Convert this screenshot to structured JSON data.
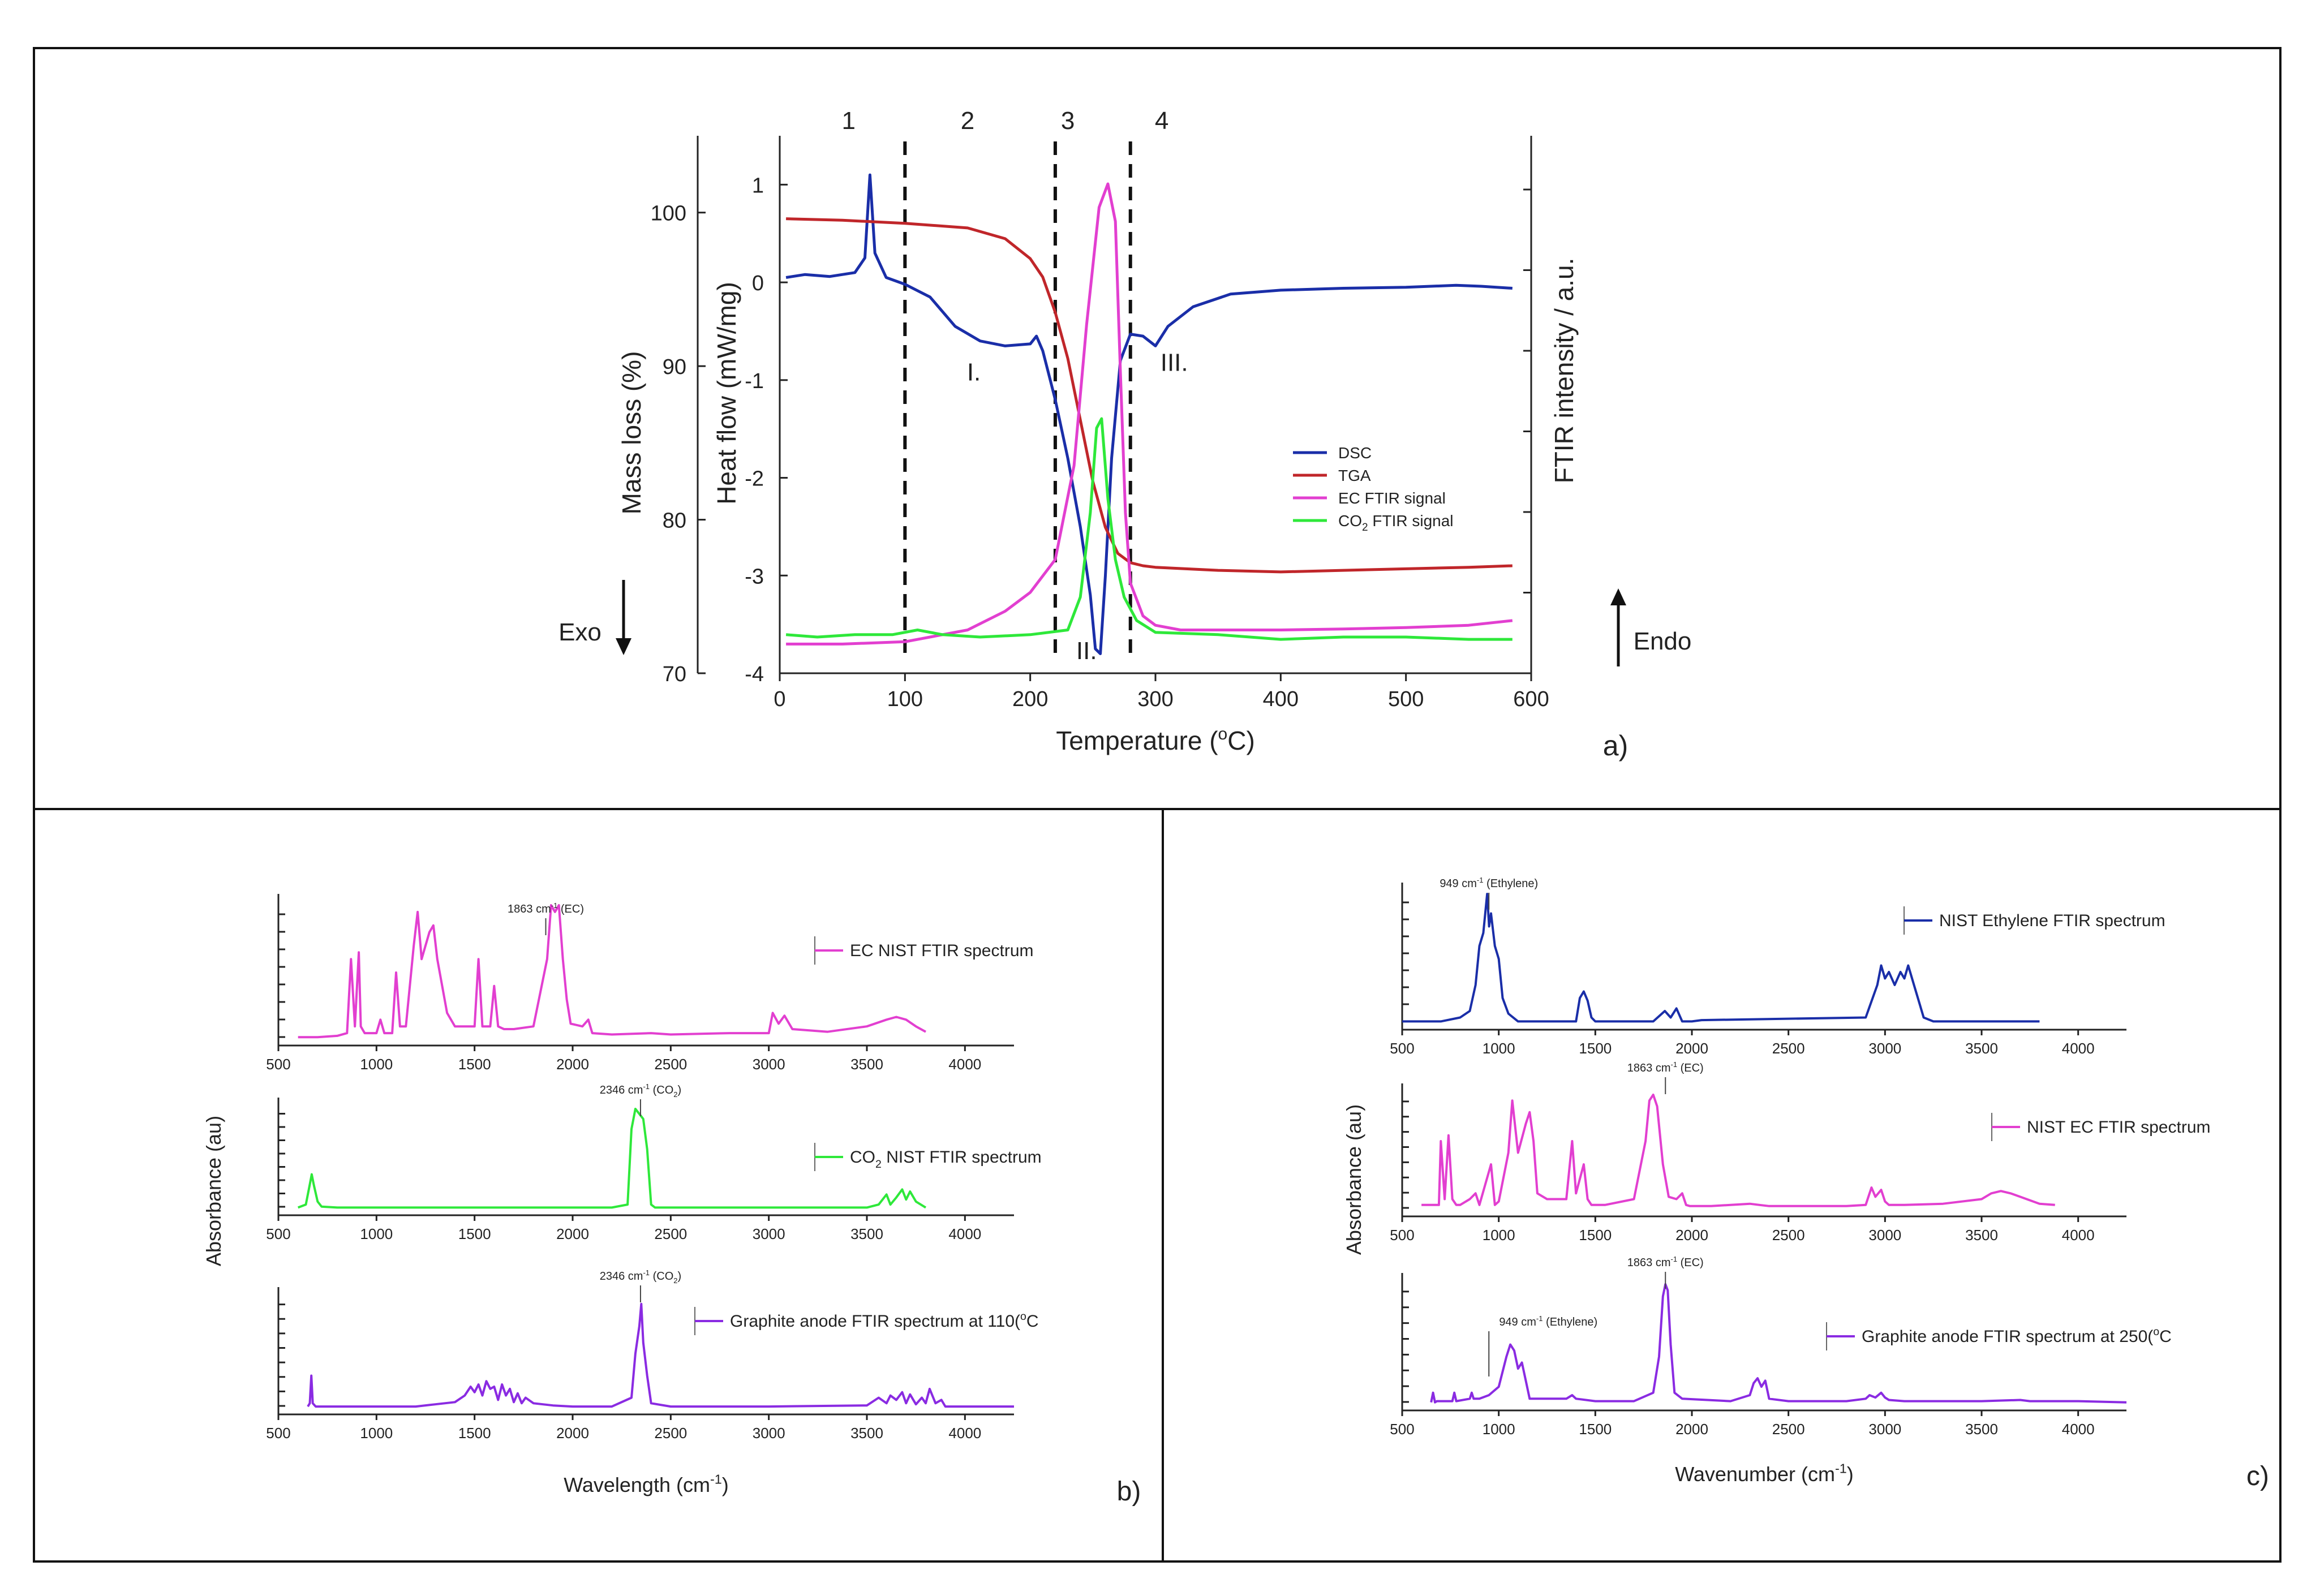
{
  "chart_data": [
    {
      "panel": "a)",
      "type": "line",
      "xlabel": "Temperature (ºC)",
      "ylabel_mass": "Mass loss  (%)",
      "ylabel_heat": "Heat flow (mW/mg)",
      "ylabel_ftir": "FTIR intensity / a.u.",
      "xlim": [
        0,
        600
      ],
      "xticks": [
        0,
        100,
        200,
        300,
        400,
        500,
        600
      ],
      "mass_lim": [
        70,
        105
      ],
      "mass_ticks": [
        70,
        80,
        90,
        100
      ],
      "heat_lim": [
        -4,
        1.5
      ],
      "heat_ticks": [
        -4,
        -3,
        -2,
        -1,
        0,
        1
      ],
      "region_dividers": [
        100,
        220,
        280
      ],
      "region_labels": [
        {
          "text": "1",
          "x": 55
        },
        {
          "text": "2",
          "x": 150
        },
        {
          "text": "3",
          "x": 230
        },
        {
          "text": "4",
          "x": 305
        }
      ],
      "peak_labels": [
        {
          "text": "I.",
          "x": 155,
          "y": -0.9
        },
        {
          "text": "II.",
          "x": 245,
          "y": -3.75
        },
        {
          "text": "III.",
          "x": 315,
          "y": -0.8
        }
      ],
      "exo_label": "Exo",
      "endo_label": "Endo",
      "legend": [
        {
          "name": "DSC",
          "color": "#1a2ea8"
        },
        {
          "name": "TGA",
          "color": "#c0262a"
        },
        {
          "name": "EC FTIR signal",
          "color": "#e23fd0"
        },
        {
          "name": "CO",
          "sub": "2",
          "tail": " FTIR signal",
          "color": "#2ee83a"
        }
      ],
      "series": [
        {
          "name": "DSC",
          "axis": "heat",
          "color": "#1a2ea8",
          "x": [
            5,
            20,
            40,
            60,
            68,
            72,
            76,
            85,
            100,
            120,
            140,
            160,
            180,
            200,
            205,
            210,
            215,
            220,
            230,
            240,
            248,
            252,
            256,
            260,
            265,
            272,
            280,
            290,
            300,
            310,
            330,
            360,
            400,
            450,
            500,
            540,
            560,
            585
          ],
          "y": [
            0.05,
            0.08,
            0.06,
            0.1,
            0.25,
            1.1,
            0.3,
            0.05,
            -0.02,
            -0.15,
            -0.45,
            -0.6,
            -0.65,
            -0.63,
            -0.55,
            -0.7,
            -0.95,
            -1.2,
            -1.8,
            -2.5,
            -3.2,
            -3.75,
            -3.8,
            -3.0,
            -1.8,
            -0.8,
            -0.53,
            -0.55,
            -0.65,
            -0.45,
            -0.25,
            -0.12,
            -0.08,
            -0.06,
            -0.05,
            -0.03,
            -0.04,
            -0.06
          ]
        },
        {
          "name": "TGA",
          "axis": "mass",
          "color": "#c0262a",
          "x": [
            5,
            50,
            100,
            150,
            180,
            200,
            210,
            220,
            230,
            240,
            250,
            260,
            270,
            280,
            290,
            300,
            350,
            400,
            450,
            500,
            550,
            585
          ],
          "y": [
            99.6,
            99.5,
            99.3,
            99.0,
            98.3,
            97.0,
            95.8,
            93.5,
            90.5,
            86.5,
            82.5,
            79.5,
            77.8,
            77.2,
            77.0,
            76.9,
            76.7,
            76.6,
            76.7,
            76.8,
            76.9,
            77.0
          ]
        },
        {
          "name": "EC FTIR signal",
          "axis": "ftir",
          "color": "#e23fd0",
          "x": [
            5,
            50,
            100,
            150,
            180,
            200,
            220,
            235,
            245,
            255,
            262,
            268,
            272,
            276,
            280,
            290,
            300,
            320,
            350,
            400,
            450,
            500,
            550,
            585
          ],
          "y": [
            0.02,
            0.02,
            0.025,
            0.05,
            0.09,
            0.13,
            0.2,
            0.4,
            0.7,
            0.95,
            1.0,
            0.92,
            0.6,
            0.3,
            0.15,
            0.08,
            0.06,
            0.05,
            0.05,
            0.05,
            0.052,
            0.055,
            0.06,
            0.07
          ]
        },
        {
          "name": "CO2 FTIR signal",
          "axis": "ftir",
          "color": "#2ee83a",
          "x": [
            5,
            30,
            60,
            90,
            110,
            130,
            160,
            200,
            230,
            240,
            248,
            253,
            257,
            262,
            268,
            275,
            285,
            300,
            350,
            400,
            450,
            500,
            550,
            585
          ],
          "y": [
            0.04,
            0.035,
            0.04,
            0.04,
            0.05,
            0.04,
            0.035,
            0.04,
            0.05,
            0.12,
            0.3,
            0.48,
            0.5,
            0.33,
            0.2,
            0.12,
            0.07,
            0.045,
            0.04,
            0.03,
            0.035,
            0.035,
            0.03,
            0.03
          ]
        }
      ]
    },
    {
      "panel": "b)",
      "type": "line",
      "xlabel": "Wavelength (cm-1)",
      "ylabel": "Absorbance (au)",
      "xlim": [
        500,
        4250
      ],
      "xticks": [
        500,
        1000,
        1500,
        2000,
        2500,
        3000,
        3500,
        4000
      ],
      "spectra": [
        {
          "name": "EC NIST FTIR spectrum",
          "color": "#e23fd0",
          "annotation": "1863 cm-1 (EC)",
          "annot_x": 1863,
          "x": [
            600,
            700,
            800,
            850,
            870,
            890,
            910,
            920,
            940,
            1000,
            1020,
            1040,
            1080,
            1100,
            1120,
            1150,
            1190,
            1210,
            1230,
            1270,
            1290,
            1310,
            1360,
            1400,
            1500,
            1520,
            1540,
            1580,
            1600,
            1620,
            1650,
            1700,
            1800,
            1870,
            1890,
            1910,
            1930,
            1950,
            1970,
            1990,
            2050,
            2080,
            2100,
            2200,
            2400,
            2500,
            2800,
            3000,
            3020,
            3050,
            3080,
            3120,
            3300,
            3500,
            3600,
            3650,
            3700,
            3750,
            3800
          ],
          "y": [
            0.02,
            0.02,
            0.03,
            0.05,
            0.6,
            0.1,
            0.65,
            0.1,
            0.05,
            0.05,
            0.15,
            0.05,
            0.05,
            0.5,
            0.1,
            0.1,
            0.7,
            0.95,
            0.6,
            0.8,
            0.85,
            0.6,
            0.2,
            0.1,
            0.1,
            0.6,
            0.1,
            0.1,
            0.4,
            0.1,
            0.08,
            0.08,
            0.1,
            0.6,
            1.0,
            0.95,
            1.0,
            0.6,
            0.3,
            0.12,
            0.1,
            0.15,
            0.05,
            0.04,
            0.05,
            0.04,
            0.05,
            0.05,
            0.2,
            0.12,
            0.18,
            0.08,
            0.06,
            0.1,
            0.15,
            0.17,
            0.15,
            0.1,
            0.06
          ]
        },
        {
          "name": "CO2 NIST FTIR spectrum",
          "color": "#2ee83a",
          "annotation": "2346 cm-1 (CO2)",
          "annot_x": 2346,
          "x": [
            600,
            640,
            660,
            670,
            680,
            700,
            720,
            800,
            1000,
            1500,
            2000,
            2200,
            2280,
            2300,
            2320,
            2340,
            2360,
            2380,
            2400,
            2420,
            2500,
            3000,
            3500,
            3560,
            3600,
            3620,
            3650,
            3680,
            3700,
            3720,
            3750,
            3800
          ],
          "y": [
            0.02,
            0.05,
            0.25,
            0.35,
            0.25,
            0.08,
            0.03,
            0.02,
            0.02,
            0.02,
            0.02,
            0.02,
            0.05,
            0.8,
            1.0,
            0.95,
            0.9,
            0.6,
            0.05,
            0.02,
            0.02,
            0.02,
            0.02,
            0.05,
            0.15,
            0.05,
            0.12,
            0.2,
            0.1,
            0.18,
            0.08,
            0.02
          ]
        },
        {
          "name": "Graphite anode FTIR spectrum at 110ºC",
          "color": "#8a2be2",
          "annotation": "2346 cm-1 (CO2)",
          "annot_x": 2346,
          "x": [
            650,
            660,
            668,
            675,
            690,
            800,
            1000,
            1200,
            1300,
            1400,
            1450,
            1480,
            1500,
            1520,
            1540,
            1560,
            1580,
            1600,
            1620,
            1640,
            1660,
            1680,
            1700,
            1720,
            1740,
            1760,
            1800,
            1900,
            2000,
            2200,
            2300,
            2320,
            2340,
            2350,
            2360,
            2380,
            2400,
            2500,
            3000,
            3500,
            3560,
            3600,
            3620,
            3650,
            3680,
            3700,
            3720,
            3750,
            3780,
            3800,
            3820,
            3850,
            3880,
            3900,
            4000,
            4250
          ],
          "y": [
            0.02,
            0.05,
            0.3,
            0.05,
            0.02,
            0.02,
            0.02,
            0.02,
            0.04,
            0.06,
            0.12,
            0.2,
            0.15,
            0.22,
            0.12,
            0.25,
            0.18,
            0.2,
            0.08,
            0.22,
            0.12,
            0.18,
            0.06,
            0.14,
            0.05,
            0.1,
            0.05,
            0.03,
            0.02,
            0.02,
            0.1,
            0.5,
            0.75,
            0.95,
            0.6,
            0.3,
            0.05,
            0.02,
            0.02,
            0.03,
            0.1,
            0.05,
            0.12,
            0.08,
            0.15,
            0.05,
            0.13,
            0.04,
            0.1,
            0.05,
            0.18,
            0.05,
            0.08,
            0.02,
            0.02,
            0.02
          ]
        }
      ]
    },
    {
      "panel": "c)",
      "type": "line",
      "xlabel": "Wavenumber (cm-1)",
      "ylabel": "Absorbance (au)",
      "xlim": [
        500,
        4250
      ],
      "xticks": [
        500,
        1000,
        1500,
        2000,
        2500,
        3000,
        3500,
        4000
      ],
      "spectra": [
        {
          "name": "NIST Ethylene FTIR spectrum",
          "color": "#1a2ea8",
          "annotation": "949 cm-1 (Ethylene)",
          "annot_x": 949,
          "x": [
            500,
            600,
            700,
            800,
            850,
            880,
            900,
            920,
            940,
            950,
            960,
            980,
            1000,
            1020,
            1050,
            1100,
            1400,
            1420,
            1440,
            1460,
            1480,
            1500,
            1800,
            1860,
            1890,
            1920,
            1950,
            2000,
            2050,
            2900,
            2960,
            2980,
            3000,
            3020,
            3050,
            3080,
            3100,
            3120,
            3150,
            3180,
            3200,
            3250,
            3500,
            3800
          ],
          "y": [
            0.02,
            0.02,
            0.02,
            0.05,
            0.1,
            0.3,
            0.6,
            0.7,
            1.0,
            0.75,
            0.85,
            0.6,
            0.5,
            0.2,
            0.08,
            0.02,
            0.02,
            0.2,
            0.25,
            0.18,
            0.05,
            0.02,
            0.02,
            0.1,
            0.05,
            0.12,
            0.02,
            0.02,
            0.03,
            0.05,
            0.3,
            0.45,
            0.35,
            0.4,
            0.3,
            0.4,
            0.35,
            0.45,
            0.3,
            0.15,
            0.05,
            0.02,
            0.02,
            0.02
          ]
        },
        {
          "name": "NIST EC FTIR spectrum",
          "color": "#e23fd0",
          "annotation": "1863 cm-1 (EC)",
          "annot_x": 1863,
          "x": [
            600,
            690,
            700,
            720,
            740,
            760,
            780,
            800,
            850,
            880,
            900,
            960,
            980,
            1000,
            1050,
            1070,
            1100,
            1140,
            1160,
            1180,
            1200,
            1250,
            1350,
            1380,
            1400,
            1440,
            1460,
            1480,
            1500,
            1550,
            1700,
            1760,
            1780,
            1800,
            1820,
            1850,
            1880,
            1920,
            1950,
            1970,
            1990,
            2100,
            2300,
            2350,
            2400,
            2800,
            2900,
            2930,
            2950,
            2980,
            3000,
            3020,
            3100,
            3300,
            3500,
            3550,
            3600,
            3650,
            3700,
            3800,
            3880
          ],
          "y": [
            0.05,
            0.05,
            0.6,
            0.1,
            0.65,
            0.1,
            0.05,
            0.05,
            0.1,
            0.15,
            0.05,
            0.4,
            0.05,
            0.08,
            0.5,
            0.95,
            0.5,
            0.75,
            0.85,
            0.6,
            0.15,
            0.1,
            0.1,
            0.6,
            0.15,
            0.4,
            0.1,
            0.05,
            0.05,
            0.05,
            0.1,
            0.6,
            0.95,
            1.0,
            0.9,
            0.4,
            0.12,
            0.1,
            0.15,
            0.05,
            0.04,
            0.04,
            0.06,
            0.05,
            0.04,
            0.04,
            0.05,
            0.2,
            0.12,
            0.18,
            0.08,
            0.05,
            0.05,
            0.06,
            0.1,
            0.15,
            0.17,
            0.15,
            0.12,
            0.06,
            0.05
          ]
        },
        {
          "name": "Graphite anode FTIR spectrum at 250ºC",
          "color": "#8a2be2",
          "annotation": "1863 cm-1 (EC)",
          "annot_x": 1863,
          "annotation2": "949 cm-1 (Ethylene)",
          "annot2_x": 949,
          "x": [
            650,
            660,
            670,
            680,
            700,
            760,
            770,
            780,
            850,
            860,
            870,
            900,
            949,
            1000,
            1040,
            1060,
            1080,
            1100,
            1120,
            1140,
            1160,
            1300,
            1350,
            1380,
            1400,
            1500,
            1700,
            1800,
            1830,
            1850,
            1863,
            1875,
            1890,
            1910,
            1950,
            2200,
            2300,
            2320,
            2340,
            2360,
            2380,
            2400,
            2500,
            2800,
            2900,
            2920,
            2950,
            2980,
            3000,
            3020,
            3100,
            3500,
            3700,
            3750,
            3800,
            4000,
            4250
          ],
          "y": [
            0.02,
            0.1,
            0.02,
            0.03,
            0.03,
            0.03,
            0.1,
            0.03,
            0.05,
            0.1,
            0.05,
            0.05,
            0.08,
            0.15,
            0.4,
            0.5,
            0.45,
            0.3,
            0.35,
            0.2,
            0.05,
            0.05,
            0.05,
            0.08,
            0.05,
            0.03,
            0.03,
            0.1,
            0.4,
            0.9,
            1.0,
            0.95,
            0.5,
            0.1,
            0.05,
            0.03,
            0.08,
            0.18,
            0.22,
            0.15,
            0.2,
            0.05,
            0.03,
            0.03,
            0.05,
            0.08,
            0.06,
            0.1,
            0.06,
            0.04,
            0.03,
            0.03,
            0.04,
            0.03,
            0.03,
            0.03,
            0.02
          ]
        }
      ]
    }
  ]
}
